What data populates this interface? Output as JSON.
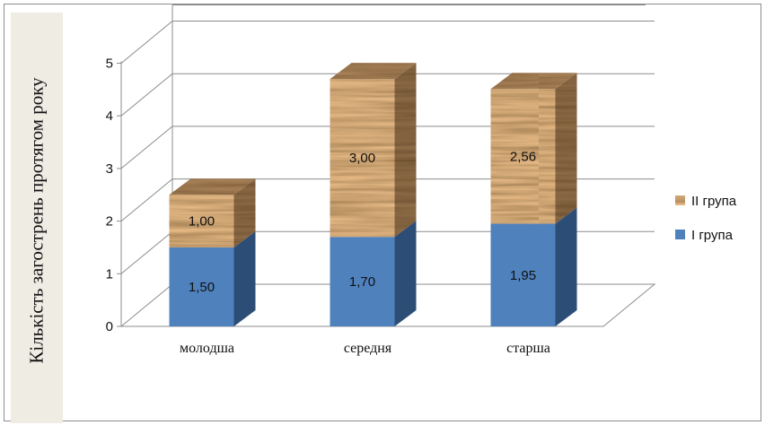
{
  "chart_data": {
    "type": "bar",
    "stacked": true,
    "three_d": true,
    "ylabel": "Кількість  загострень протягом року",
    "xlabel": "",
    "categories": [
      "молодша",
      "середня",
      "старша"
    ],
    "series": [
      {
        "name": "I група",
        "values": [
          1.5,
          1.7,
          1.95
        ],
        "labels": [
          "1,50",
          "1,70",
          "1,95"
        ],
        "color": "#4f81bd",
        "side_color": "#2c4d75"
      },
      {
        "name": "II група",
        "values": [
          1.0,
          3.0,
          2.56
        ],
        "labels": [
          "1,00",
          "3,00",
          "2,56"
        ],
        "color": "#8b5a2b",
        "side_color": "#5e3a18",
        "texture": "wood"
      }
    ],
    "ylim": [
      0,
      5
    ],
    "yticks": [
      "0",
      "1",
      "2",
      "3",
      "4",
      "5"
    ],
    "grid": true,
    "legend_position": "right"
  }
}
